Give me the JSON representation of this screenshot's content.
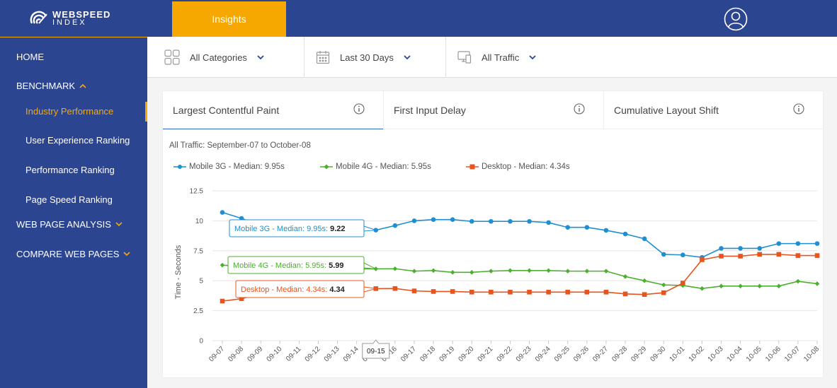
{
  "brand": {
    "name_line1": "WEBSPEED",
    "name_line2": "INDEX"
  },
  "header": {
    "active_tab": "Insights"
  },
  "sidebar": {
    "home": "HOME",
    "benchmark": "BENCHMARK",
    "benchmark_items": [
      "Industry Performance",
      "User Experience Ranking",
      "Performance Ranking",
      "Page Speed Ranking"
    ],
    "web_page_analysis": "WEB PAGE ANALYSIS",
    "compare_web_pages": "COMPARE WEB PAGES"
  },
  "filters": {
    "category": "All Categories",
    "period": "Last 30 Days",
    "traffic": "All Traffic"
  },
  "metric_tabs": [
    "Largest Contentful Paint",
    "First Input Delay",
    "Cumulative Layout Shift"
  ],
  "colors": {
    "nav_bg": "#2c4591",
    "accent": "#f7a800",
    "mobile3g": "#1f8fcf",
    "mobile4g": "#4caf2e",
    "desktop": "#e8541e"
  },
  "chart_data": {
    "type": "line",
    "subtitle": "All Traffic: September-07 to October-08",
    "ylabel": "Time - Seconds",
    "xlabel": "",
    "ylim": [
      0,
      12.5
    ],
    "yticks": [
      "0",
      "2.5",
      "5",
      "7.5",
      "10",
      "12.5"
    ],
    "x": [
      "09-07",
      "09-08",
      "09-09",
      "09-10",
      "09-11",
      "09-12",
      "09-13",
      "09-14",
      "09-15",
      "09-16",
      "09-17",
      "09-18",
      "09-19",
      "09-20",
      "09-21",
      "09-22",
      "09-23",
      "09-24",
      "09-25",
      "09-26",
      "09-27",
      "09-28",
      "09-29",
      "09-30",
      "10-01",
      "10-02",
      "10-03",
      "10-04",
      "10-05",
      "10-06",
      "10-07",
      "10-08"
    ],
    "series": [
      {
        "name": "Mobile 3G - Median: 9.95s",
        "values": [
          10.7,
          10.2,
          9.6,
          9.6,
          9.5,
          9.4,
          9.3,
          9.2,
          9.22,
          9.6,
          10.0,
          10.1,
          10.1,
          9.95,
          9.95,
          9.95,
          9.95,
          9.85,
          9.45,
          9.45,
          9.2,
          8.9,
          8.5,
          7.2,
          7.15,
          6.95,
          7.7,
          7.7,
          7.7,
          8.1,
          8.1,
          8.1
        ]
      },
      {
        "name": "Mobile 4G - Median: 5.95s",
        "values": [
          6.3,
          6.2,
          6.1,
          6.1,
          6.05,
          6.0,
          6.0,
          5.99,
          5.99,
          6.0,
          5.8,
          5.85,
          5.7,
          5.7,
          5.8,
          5.85,
          5.85,
          5.85,
          5.8,
          5.8,
          5.8,
          5.35,
          5.0,
          4.65,
          4.6,
          4.35,
          4.55,
          4.55,
          4.55,
          4.55,
          4.95,
          4.75
        ]
      },
      {
        "name": "Desktop - Median: 4.34s",
        "values": [
          3.3,
          3.5,
          3.9,
          4.0,
          4.2,
          4.3,
          4.3,
          4.34,
          4.34,
          4.35,
          4.15,
          4.1,
          4.1,
          4.05,
          4.05,
          4.05,
          4.05,
          4.05,
          4.05,
          4.05,
          4.05,
          3.9,
          3.85,
          4.0,
          4.8,
          6.75,
          7.05,
          7.05,
          7.2,
          7.2,
          7.1,
          7.1
        ]
      }
    ],
    "tooltip": {
      "x": "09-15",
      "rows": [
        {
          "label": "Mobile 3G - Median: 9.95s:",
          "value": "9.22"
        },
        {
          "label": "Mobile 4G - Median: 5.95s:",
          "value": "5.99"
        },
        {
          "label": "Desktop - Median: 4.34s:",
          "value": "4.34"
        }
      ]
    },
    "grid": true,
    "legend": "top-left"
  }
}
